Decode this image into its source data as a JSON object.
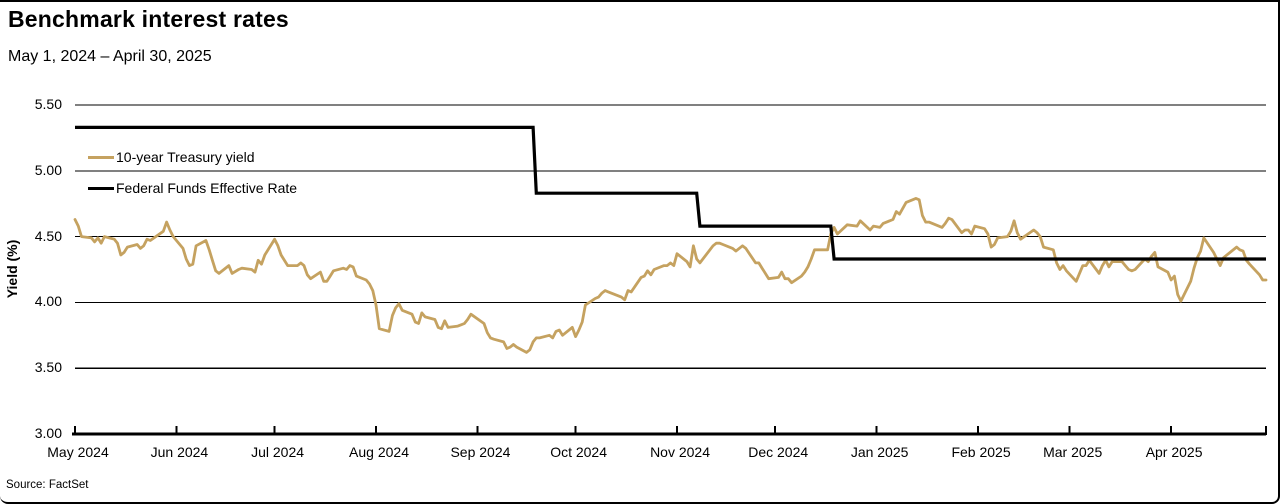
{
  "header": {
    "title": "Benchmark interest rates",
    "subtitle": "May 1, 2024 – April 30, 2025"
  },
  "footer": {
    "source": "Source: FactSet"
  },
  "legend": [
    {
      "label": "10-year Treasury yield",
      "color": "#C5A260"
    },
    {
      "label": "Federal Funds Effective Rate",
      "color": "#000000"
    }
  ],
  "chart": {
    "ylabel": "Yield (%)",
    "y_ticks": [
      "5.50",
      "5.00",
      "4.50",
      "4.00",
      "3.50",
      "3.00"
    ],
    "x_ticks": [
      {
        "label": "May 2024",
        "date": "2024-05-01"
      },
      {
        "label": "Jun 2024",
        "date": "2024-06-01"
      },
      {
        "label": "Jul 2024",
        "date": "2024-07-01"
      },
      {
        "label": "Aug 2024",
        "date": "2024-08-01"
      },
      {
        "label": "Sep 2024",
        "date": "2024-09-01"
      },
      {
        "label": "Oct 2024",
        "date": "2024-10-01"
      },
      {
        "label": "Nov 2024",
        "date": "2024-11-01"
      },
      {
        "label": "Dec 2024",
        "date": "2024-12-01"
      },
      {
        "label": "Jan 2025",
        "date": "2025-01-01"
      },
      {
        "label": "Feb 2025",
        "date": "2025-02-01"
      },
      {
        "label": "Mar 2025",
        "date": "2025-03-01"
      },
      {
        "label": "Apr 2025",
        "date": "2025-04-01"
      }
    ],
    "colors": {
      "treasury": "#C5A260",
      "fed": "#000000",
      "grid": "#000000"
    }
  },
  "chart_data": {
    "type": "line",
    "title": "Benchmark interest rates",
    "subtitle": "May 1, 2024 – April 30, 2025",
    "xlabel": "",
    "ylabel": "Yield (%)",
    "ylim": [
      3.0,
      5.5
    ],
    "x_range": [
      "2024-05-01",
      "2025-04-30"
    ],
    "grid": "horizontal",
    "legend_position": "upper-left-inside",
    "source": "Source: FactSet",
    "series": [
      {
        "name": "10-year Treasury yield",
        "color": "#C5A260",
        "style": "line",
        "points": [
          [
            "2024-05-01",
            4.63
          ],
          [
            "2024-05-02",
            4.58
          ],
          [
            "2024-05-03",
            4.5
          ],
          [
            "2024-05-06",
            4.49
          ],
          [
            "2024-05-07",
            4.46
          ],
          [
            "2024-05-08",
            4.49
          ],
          [
            "2024-05-09",
            4.45
          ],
          [
            "2024-05-10",
            4.5
          ],
          [
            "2024-05-13",
            4.48
          ],
          [
            "2024-05-14",
            4.45
          ],
          [
            "2024-05-15",
            4.36
          ],
          [
            "2024-05-16",
            4.38
          ],
          [
            "2024-05-17",
            4.42
          ],
          [
            "2024-05-20",
            4.44
          ],
          [
            "2024-05-21",
            4.41
          ],
          [
            "2024-05-22",
            4.43
          ],
          [
            "2024-05-23",
            4.48
          ],
          [
            "2024-05-24",
            4.47
          ],
          [
            "2024-05-28",
            4.54
          ],
          [
            "2024-05-29",
            4.61
          ],
          [
            "2024-05-30",
            4.55
          ],
          [
            "2024-05-31",
            4.5
          ],
          [
            "2024-06-03",
            4.41
          ],
          [
            "2024-06-04",
            4.33
          ],
          [
            "2024-06-05",
            4.28
          ],
          [
            "2024-06-06",
            4.29
          ],
          [
            "2024-06-07",
            4.43
          ],
          [
            "2024-06-10",
            4.47
          ],
          [
            "2024-06-11",
            4.4
          ],
          [
            "2024-06-12",
            4.32
          ],
          [
            "2024-06-13",
            4.24
          ],
          [
            "2024-06-14",
            4.22
          ],
          [
            "2024-06-17",
            4.28
          ],
          [
            "2024-06-18",
            4.22
          ],
          [
            "2024-06-20",
            4.25
          ],
          [
            "2024-06-21",
            4.26
          ],
          [
            "2024-06-24",
            4.25
          ],
          [
            "2024-06-25",
            4.23
          ],
          [
            "2024-06-26",
            4.32
          ],
          [
            "2024-06-27",
            4.29
          ],
          [
            "2024-06-28",
            4.36
          ],
          [
            "2024-07-01",
            4.48
          ],
          [
            "2024-07-02",
            4.43
          ],
          [
            "2024-07-03",
            4.36
          ],
          [
            "2024-07-05",
            4.28
          ],
          [
            "2024-07-08",
            4.28
          ],
          [
            "2024-07-09",
            4.3
          ],
          [
            "2024-07-10",
            4.28
          ],
          [
            "2024-07-11",
            4.21
          ],
          [
            "2024-07-12",
            4.18
          ],
          [
            "2024-07-15",
            4.23
          ],
          [
            "2024-07-16",
            4.16
          ],
          [
            "2024-07-17",
            4.16
          ],
          [
            "2024-07-18",
            4.2
          ],
          [
            "2024-07-19",
            4.24
          ],
          [
            "2024-07-22",
            4.26
          ],
          [
            "2024-07-23",
            4.25
          ],
          [
            "2024-07-24",
            4.28
          ],
          [
            "2024-07-25",
            4.27
          ],
          [
            "2024-07-26",
            4.2
          ],
          [
            "2024-07-29",
            4.17
          ],
          [
            "2024-07-30",
            4.14
          ],
          [
            "2024-07-31",
            4.09
          ],
          [
            "2024-08-01",
            3.98
          ],
          [
            "2024-08-02",
            3.8
          ],
          [
            "2024-08-05",
            3.78
          ],
          [
            "2024-08-06",
            3.9
          ],
          [
            "2024-08-07",
            3.96
          ],
          [
            "2024-08-08",
            3.99
          ],
          [
            "2024-08-09",
            3.94
          ],
          [
            "2024-08-12",
            3.91
          ],
          [
            "2024-08-13",
            3.85
          ],
          [
            "2024-08-14",
            3.84
          ],
          [
            "2024-08-15",
            3.92
          ],
          [
            "2024-08-16",
            3.89
          ],
          [
            "2024-08-19",
            3.87
          ],
          [
            "2024-08-20",
            3.81
          ],
          [
            "2024-08-21",
            3.8
          ],
          [
            "2024-08-22",
            3.86
          ],
          [
            "2024-08-23",
            3.81
          ],
          [
            "2024-08-26",
            3.82
          ],
          [
            "2024-08-27",
            3.83
          ],
          [
            "2024-08-28",
            3.84
          ],
          [
            "2024-08-29",
            3.87
          ],
          [
            "2024-08-30",
            3.91
          ],
          [
            "2024-09-03",
            3.84
          ],
          [
            "2024-09-04",
            3.77
          ],
          [
            "2024-09-05",
            3.73
          ],
          [
            "2024-09-06",
            3.72
          ],
          [
            "2024-09-09",
            3.7
          ],
          [
            "2024-09-10",
            3.65
          ],
          [
            "2024-09-11",
            3.66
          ],
          [
            "2024-09-12",
            3.68
          ],
          [
            "2024-09-13",
            3.66
          ],
          [
            "2024-09-16",
            3.62
          ],
          [
            "2024-09-17",
            3.64
          ],
          [
            "2024-09-18",
            3.7
          ],
          [
            "2024-09-19",
            3.73
          ],
          [
            "2024-09-20",
            3.73
          ],
          [
            "2024-09-23",
            3.75
          ],
          [
            "2024-09-24",
            3.73
          ],
          [
            "2024-09-25",
            3.78
          ],
          [
            "2024-09-26",
            3.79
          ],
          [
            "2024-09-27",
            3.75
          ],
          [
            "2024-09-30",
            3.81
          ],
          [
            "2024-10-01",
            3.74
          ],
          [
            "2024-10-02",
            3.79
          ],
          [
            "2024-10-03",
            3.85
          ],
          [
            "2024-10-04",
            3.98
          ],
          [
            "2024-10-07",
            4.03
          ],
          [
            "2024-10-08",
            4.04
          ],
          [
            "2024-10-09",
            4.07
          ],
          [
            "2024-10-10",
            4.09
          ],
          [
            "2024-10-11",
            4.08
          ],
          [
            "2024-10-15",
            4.04
          ],
          [
            "2024-10-16",
            4.02
          ],
          [
            "2024-10-17",
            4.09
          ],
          [
            "2024-10-18",
            4.08
          ],
          [
            "2024-10-21",
            4.19
          ],
          [
            "2024-10-22",
            4.2
          ],
          [
            "2024-10-23",
            4.24
          ],
          [
            "2024-10-24",
            4.21
          ],
          [
            "2024-10-25",
            4.25
          ],
          [
            "2024-10-28",
            4.28
          ],
          [
            "2024-10-29",
            4.28
          ],
          [
            "2024-10-30",
            4.3
          ],
          [
            "2024-10-31",
            4.28
          ],
          [
            "2024-11-01",
            4.37
          ],
          [
            "2024-11-04",
            4.31
          ],
          [
            "2024-11-05",
            4.27
          ],
          [
            "2024-11-06",
            4.43
          ],
          [
            "2024-11-07",
            4.33
          ],
          [
            "2024-11-08",
            4.3
          ],
          [
            "2024-11-12",
            4.43
          ],
          [
            "2024-11-13",
            4.45
          ],
          [
            "2024-11-14",
            4.45
          ],
          [
            "2024-11-15",
            4.44
          ],
          [
            "2024-11-18",
            4.41
          ],
          [
            "2024-11-19",
            4.39
          ],
          [
            "2024-11-20",
            4.41
          ],
          [
            "2024-11-21",
            4.43
          ],
          [
            "2024-11-22",
            4.41
          ],
          [
            "2024-11-25",
            4.3
          ],
          [
            "2024-11-26",
            4.3
          ],
          [
            "2024-11-27",
            4.26
          ],
          [
            "2024-11-29",
            4.18
          ],
          [
            "2024-12-02",
            4.19
          ],
          [
            "2024-12-03",
            4.23
          ],
          [
            "2024-12-04",
            4.18
          ],
          [
            "2024-12-05",
            4.18
          ],
          [
            "2024-12-06",
            4.15
          ],
          [
            "2024-12-09",
            4.2
          ],
          [
            "2024-12-10",
            4.23
          ],
          [
            "2024-12-11",
            4.27
          ],
          [
            "2024-12-12",
            4.33
          ],
          [
            "2024-12-13",
            4.4
          ],
          [
            "2024-12-16",
            4.4
          ],
          [
            "2024-12-17",
            4.4
          ],
          [
            "2024-12-18",
            4.52
          ],
          [
            "2024-12-19",
            4.57
          ],
          [
            "2024-12-20",
            4.52
          ],
          [
            "2024-12-23",
            4.59
          ],
          [
            "2024-12-26",
            4.58
          ],
          [
            "2024-12-27",
            4.62
          ],
          [
            "2024-12-30",
            4.55
          ],
          [
            "2024-12-31",
            4.58
          ],
          [
            "2025-01-02",
            4.57
          ],
          [
            "2025-01-03",
            4.6
          ],
          [
            "2025-01-06",
            4.63
          ],
          [
            "2025-01-07",
            4.69
          ],
          [
            "2025-01-08",
            4.67
          ],
          [
            "2025-01-10",
            4.76
          ],
          [
            "2025-01-13",
            4.79
          ],
          [
            "2025-01-14",
            4.78
          ],
          [
            "2025-01-15",
            4.66
          ],
          [
            "2025-01-16",
            4.61
          ],
          [
            "2025-01-17",
            4.61
          ],
          [
            "2025-01-21",
            4.57
          ],
          [
            "2025-01-22",
            4.6
          ],
          [
            "2025-01-23",
            4.64
          ],
          [
            "2025-01-24",
            4.63
          ],
          [
            "2025-01-27",
            4.53
          ],
          [
            "2025-01-28",
            4.55
          ],
          [
            "2025-01-29",
            4.55
          ],
          [
            "2025-01-30",
            4.52
          ],
          [
            "2025-01-31",
            4.58
          ],
          [
            "2025-02-03",
            4.56
          ],
          [
            "2025-02-04",
            4.52
          ],
          [
            "2025-02-05",
            4.42
          ],
          [
            "2025-02-06",
            4.44
          ],
          [
            "2025-02-07",
            4.49
          ],
          [
            "2025-02-10",
            4.5
          ],
          [
            "2025-02-11",
            4.54
          ],
          [
            "2025-02-12",
            4.62
          ],
          [
            "2025-02-13",
            4.53
          ],
          [
            "2025-02-14",
            4.48
          ],
          [
            "2025-02-18",
            4.55
          ],
          [
            "2025-02-19",
            4.53
          ],
          [
            "2025-02-20",
            4.5
          ],
          [
            "2025-02-21",
            4.42
          ],
          [
            "2025-02-24",
            4.4
          ],
          [
            "2025-02-25",
            4.3
          ],
          [
            "2025-02-26",
            4.25
          ],
          [
            "2025-02-27",
            4.28
          ],
          [
            "2025-02-28",
            4.24
          ],
          [
            "2025-03-03",
            4.16
          ],
          [
            "2025-03-04",
            4.22
          ],
          [
            "2025-03-05",
            4.28
          ],
          [
            "2025-03-06",
            4.28
          ],
          [
            "2025-03-07",
            4.32
          ],
          [
            "2025-03-10",
            4.22
          ],
          [
            "2025-03-11",
            4.28
          ],
          [
            "2025-03-12",
            4.32
          ],
          [
            "2025-03-13",
            4.27
          ],
          [
            "2025-03-14",
            4.31
          ],
          [
            "2025-03-17",
            4.31
          ],
          [
            "2025-03-18",
            4.28
          ],
          [
            "2025-03-19",
            4.25
          ],
          [
            "2025-03-20",
            4.24
          ],
          [
            "2025-03-21",
            4.25
          ],
          [
            "2025-03-24",
            4.33
          ],
          [
            "2025-03-25",
            4.31
          ],
          [
            "2025-03-26",
            4.35
          ],
          [
            "2025-03-27",
            4.38
          ],
          [
            "2025-03-28",
            4.27
          ],
          [
            "2025-03-31",
            4.23
          ],
          [
            "2025-04-01",
            4.17
          ],
          [
            "2025-04-02",
            4.2
          ],
          [
            "2025-04-03",
            4.06
          ],
          [
            "2025-04-04",
            4.01
          ],
          [
            "2025-04-07",
            4.16
          ],
          [
            "2025-04-08",
            4.26
          ],
          [
            "2025-04-09",
            4.34
          ],
          [
            "2025-04-10",
            4.39
          ],
          [
            "2025-04-11",
            4.49
          ],
          [
            "2025-04-14",
            4.38
          ],
          [
            "2025-04-15",
            4.33
          ],
          [
            "2025-04-16",
            4.28
          ],
          [
            "2025-04-17",
            4.34
          ],
          [
            "2025-04-21",
            4.42
          ],
          [
            "2025-04-22",
            4.4
          ],
          [
            "2025-04-23",
            4.39
          ],
          [
            "2025-04-24",
            4.32
          ],
          [
            "2025-04-25",
            4.29
          ],
          [
            "2025-04-28",
            4.21
          ],
          [
            "2025-04-29",
            4.17
          ],
          [
            "2025-04-30",
            4.17
          ]
        ]
      },
      {
        "name": "Federal Funds Effective Rate",
        "color": "#000000",
        "style": "step",
        "segments": [
          {
            "from": "2024-05-01",
            "to": "2024-09-18",
            "value": 5.33
          },
          {
            "from": "2024-09-19",
            "to": "2024-11-07",
            "value": 4.83
          },
          {
            "from": "2024-11-08",
            "to": "2024-12-18",
            "value": 4.58
          },
          {
            "from": "2024-12-19",
            "to": "2025-04-30",
            "value": 4.33
          }
        ]
      }
    ]
  }
}
